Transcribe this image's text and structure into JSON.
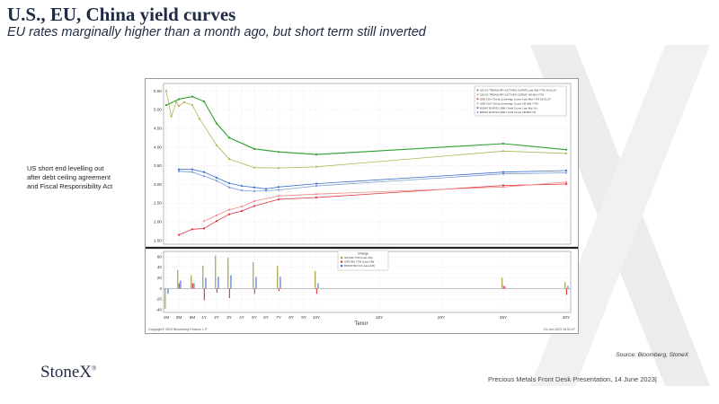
{
  "slide": {
    "title": "U.S., EU, China yield curves",
    "subtitle": "EU rates marginally higher than a month ago, but short term still inverted",
    "side_note": "US short end levelling out after debt ceiling agreement and Fiscal Responsibility Act",
    "source": "Source: Bloomberg, StoneX",
    "logo": "StoneX",
    "footer": "Precious Metals Front Desk Presentation, 14 June 2023|"
  },
  "chart_data": {
    "type": "line",
    "xlabel": "Tenor",
    "categories": [
      "1M",
      "3M",
      "6M",
      "1Y",
      "2Y",
      "3Y",
      "4Y",
      "5Y",
      "6Y",
      "7Y",
      "8Y",
      "9Y",
      "10Y",
      "15Y",
      "20Y",
      "25Y",
      "30Y"
    ],
    "upper_ylim": [
      1.4,
      5.7
    ],
    "upper_yticks": [
      "1.50",
      "2.00",
      "2.50",
      "3.00",
      "3.50",
      "4.00",
      "4.50",
      "5.00",
      "5.50"
    ],
    "lower_ylim": [
      -45,
      70
    ],
    "lower_yticks": [
      "60",
      "40",
      "20",
      "0",
      "-20",
      "-40"
    ],
    "legend": [
      "I25 US TREASURY ACTIVES CURVE Last Mid YTM 16:51:07",
      "I25 US TREASURY ACTIVES CURVE 1M Mid YTM",
      "I299 CNY China Sovereign Curve Last Mid YTM 16:51:07",
      "I299 CNY China Sovereign Curve 1M Mid YTM",
      "BS047 EUR EU EMU Yield Curve Last Bid YId",
      "BS047 EUR EU EMU Yield Curve 1M Bid YId"
    ],
    "change_legend_title": "Change",
    "change_legend": [
      "I25 Mid YTM (Last-1M)",
      "I299 Mid YTM (Last-1M)",
      "BS047 Bid YId (Last-1M)"
    ],
    "series": [
      {
        "name": "US last",
        "color": "#2ca02c",
        "x": [
          0,
          1,
          2,
          3,
          4,
          5,
          7,
          9,
          12,
          15,
          16
        ],
        "values": [
          5.12,
          5.28,
          5.35,
          5.22,
          4.63,
          4.25,
          3.95,
          3.87,
          3.8,
          4.09,
          3.93
        ],
        "dashed": false,
        "markers": true
      },
      {
        "name": "US 1M",
        "color": "#b5b35a",
        "x": [
          0,
          0.4,
          0.8,
          1,
          1.4,
          2,
          2.6,
          4,
          5,
          7,
          9,
          12,
          15,
          16
        ],
        "values": [
          5.5,
          4.82,
          5.2,
          5.1,
          5.2,
          5.12,
          4.76,
          4.05,
          3.68,
          3.45,
          3.44,
          3.47,
          3.89,
          3.83
        ],
        "dashed": false,
        "markers": true
      },
      {
        "name": "EU last",
        "color": "#3b6fd0",
        "x": [
          1,
          2,
          3,
          4,
          5,
          6,
          7,
          8,
          9,
          12,
          15,
          16
        ],
        "values": [
          3.4,
          3.4,
          3.33,
          3.18,
          3.03,
          2.96,
          2.92,
          2.88,
          2.93,
          3.02,
          3.33,
          3.37
        ],
        "dashed": false,
        "markers": true
      },
      {
        "name": "EU 1M",
        "color": "#7a9bd6",
        "x": [
          1,
          2,
          3,
          4,
          5,
          6,
          7,
          8,
          9,
          12,
          15,
          16
        ],
        "values": [
          3.35,
          3.33,
          3.22,
          3.1,
          2.92,
          2.84,
          2.82,
          2.83,
          2.85,
          2.96,
          3.28,
          3.31
        ],
        "dashed": false,
        "markers": true
      },
      {
        "name": "China last",
        "color": "#e0303a",
        "x": [
          1,
          2,
          3,
          4,
          5,
          6,
          7,
          9,
          12,
          15,
          16
        ],
        "values": [
          1.65,
          1.8,
          1.82,
          2.02,
          2.2,
          2.29,
          2.42,
          2.6,
          2.65,
          2.97,
          3.01
        ],
        "dashed": false,
        "markers": true
      },
      {
        "name": "China 1M",
        "color": "#f08a8a",
        "x": [
          3,
          4,
          5,
          6,
          7,
          9,
          12,
          15,
          16
        ],
        "values": [
          2.02,
          2.17,
          2.32,
          2.41,
          2.55,
          2.69,
          2.74,
          2.93,
          3.06
        ],
        "dashed": false,
        "markers": true
      }
    ],
    "change_bars": [
      {
        "name": "US change",
        "color": "#a39a3a",
        "x": [
          0,
          1,
          2,
          3,
          4,
          5,
          7,
          9,
          12,
          15,
          16
        ],
        "values": [
          -38,
          35,
          25,
          43,
          62,
          58,
          50,
          43,
          33,
          20,
          12
        ]
      },
      {
        "name": "China change",
        "color": "#e0303a",
        "x": [
          0,
          1,
          2,
          3,
          4,
          5,
          7,
          9,
          12,
          15,
          16
        ],
        "values": [
          0,
          10,
          10,
          -22,
          -8,
          -18,
          -10,
          -5,
          -10,
          5,
          -12
        ]
      },
      {
        "name": "EU change",
        "color": "#3b6fd0",
        "x": [
          0,
          1,
          2,
          3,
          4,
          5,
          7,
          9,
          12,
          15,
          16
        ],
        "values": [
          -10,
          15,
          10,
          20,
          22,
          25,
          22,
          22,
          10,
          4,
          5
        ]
      }
    ],
    "footer_left": "Copyright© 2023 Bloomberg Finance L.P.",
    "footer_right": "13-Jun-2023 16:51:07"
  },
  "colors": {
    "title": "#1f2a44",
    "grid": "#d9d9d9"
  }
}
